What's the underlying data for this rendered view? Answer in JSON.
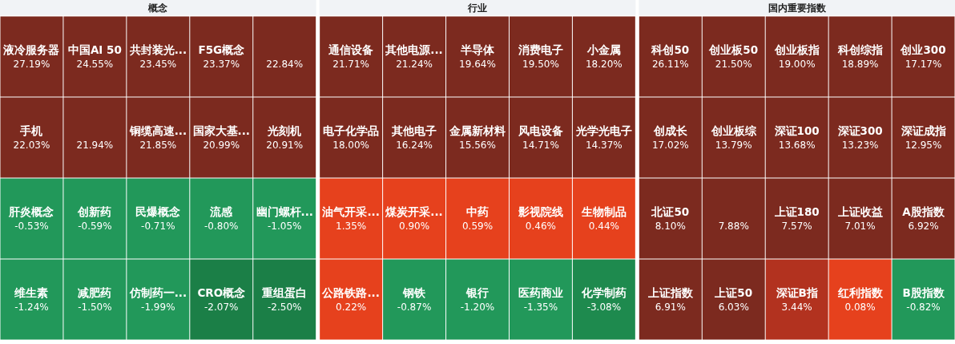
{
  "chart_data": [
    {
      "type": "other",
      "title": "概念",
      "data_labels": true,
      "categories": [
        "液冷服务器",
        "中国AI 50",
        "共封装光...",
        "F5G概念",
        null,
        "手机",
        null,
        "铜缆高速...",
        "国家大基...",
        "光刻机",
        "肝炎概念",
        "创新药",
        "民爆概念",
        "流感",
        "幽门螺杆...",
        "维生素",
        "减肥药",
        "仿制药一...",
        "CRO概念",
        "重组蛋白"
      ],
      "values": [
        27.19,
        24.55,
        23.45,
        23.37,
        22.84,
        22.03,
        21.94,
        21.85,
        20.99,
        20.91,
        -0.53,
        -0.59,
        -0.71,
        -0.8,
        -1.05,
        -1.24,
        -1.5,
        -1.99,
        -2.07,
        -2.5
      ],
      "value_labels": [
        "27.19%",
        "24.55%",
        "23.45%",
        "23.37%",
        "22.84%",
        "22.03%",
        "21.94%",
        "21.85%",
        "20.99%",
        "20.91%",
        "-0.53%",
        "-0.59%",
        "-0.71%",
        "-0.80%",
        "-1.05%",
        "-1.24%",
        "-1.50%",
        "-1.99%",
        "-2.07%",
        "-2.50%"
      ],
      "colors": [
        "#7c2a1f",
        "#7c2a1f",
        "#7c2a1f",
        "#7c2a1f",
        "#7c2a1f",
        "#7c2a1f",
        "#7c2a1f",
        "#7c2a1f",
        "#7c2a1f",
        "#7c2a1f",
        "#22985a",
        "#22985a",
        "#22985a",
        "#22985a",
        "#22985a",
        "#22985a",
        "#22985a",
        "#22985a",
        "#1b7f47",
        "#1b7f47"
      ]
    },
    {
      "type": "other",
      "title": "行业",
      "data_labels": true,
      "categories": [
        "通信设备",
        "其他电源...",
        "半导体",
        "消费电子",
        "小金属",
        "电子化学品",
        "其他电子",
        "金属新材料",
        "风电设备",
        "光学光电子",
        "油气开采...",
        "煤炭开采...",
        "中药",
        "影视院线",
        "生物制品",
        "公路铁路...",
        "钢铁",
        "银行",
        "医药商业",
        "化学制药"
      ],
      "values": [
        21.71,
        21.24,
        19.64,
        19.5,
        18.2,
        18.0,
        16.24,
        15.56,
        14.71,
        14.37,
        1.35,
        0.9,
        0.59,
        0.46,
        0.44,
        0.22,
        -0.87,
        -1.2,
        -1.35,
        -3.08
      ],
      "value_labels": [
        "21.71%",
        "21.24%",
        "19.64%",
        "19.50%",
        "18.20%",
        "18.00%",
        "16.24%",
        "15.56%",
        "14.71%",
        "14.37%",
        "1.35%",
        "0.90%",
        "0.59%",
        "0.46%",
        "0.44%",
        "0.22%",
        "-0.87%",
        "-1.20%",
        "-1.35%",
        "-3.08%"
      ],
      "colors": [
        "#7c2a1f",
        "#7c2a1f",
        "#7c2a1f",
        "#7c2a1f",
        "#7c2a1f",
        "#7c2a1f",
        "#7c2a1f",
        "#7c2a1f",
        "#7c2a1f",
        "#7c2a1f",
        "#e6411d",
        "#e6411d",
        "#e6411d",
        "#e6411d",
        "#e6411d",
        "#e6411d",
        "#22985a",
        "#22985a",
        "#22985a",
        "#1e8a4e"
      ]
    },
    {
      "type": "other",
      "title": "国内重要指数",
      "data_labels": true,
      "categories": [
        "科创50",
        "创业板50",
        "创业板指",
        "科创综指",
        "创业300",
        "创成长",
        "创业板综",
        "深证100",
        "深证300",
        "深证成指",
        "北证50",
        null,
        "上证180",
        "上证收益",
        "A股指数",
        "上证指数",
        "上证50",
        "深证B指",
        "红利指数",
        "B股指数"
      ],
      "values": [
        26.11,
        21.5,
        19.0,
        18.89,
        17.17,
        17.02,
        13.79,
        13.68,
        13.23,
        12.95,
        8.1,
        7.88,
        7.57,
        7.01,
        6.92,
        6.91,
        6.03,
        3.44,
        0.08,
        -0.82
      ],
      "value_labels": [
        "26.11%",
        "21.50%",
        "19.00%",
        "18.89%",
        "17.17%",
        "17.02%",
        "13.79%",
        "13.68%",
        "13.23%",
        "12.95%",
        "8.10%",
        "7.88%",
        "7.57%",
        "7.01%",
        "6.92%",
        "6.91%",
        "6.03%",
        "3.44%",
        "0.08%",
        "-0.82%"
      ],
      "colors": [
        "#7c2a1f",
        "#7c2a1f",
        "#7c2a1f",
        "#7c2a1f",
        "#7c2a1f",
        "#7c2a1f",
        "#7c2a1f",
        "#7c2a1f",
        "#7c2a1f",
        "#7c2a1f",
        "#7c2a1f",
        "#7c2a1f",
        "#7c2a1f",
        "#7c2a1f",
        "#7c2a1f",
        "#7c2a1f",
        "#7c2a1f",
        "#b2321f",
        "#e6411d",
        "#22985a"
      ]
    }
  ]
}
